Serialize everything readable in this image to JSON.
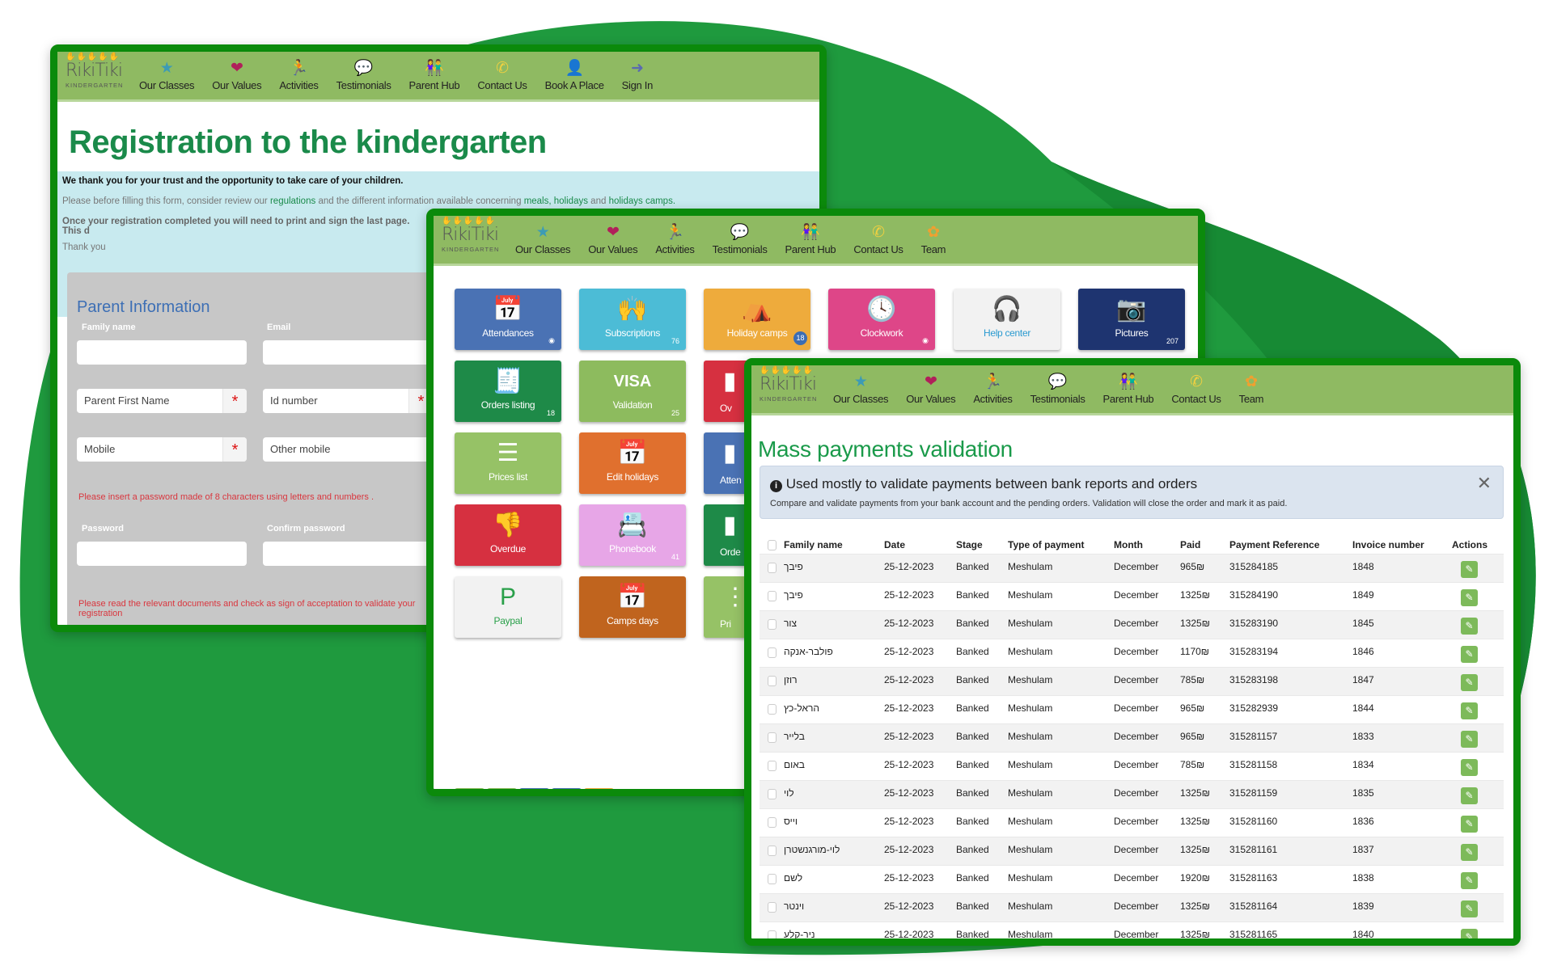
{
  "colors": {
    "frame": "#0b8a0b",
    "nav": "#8fba62",
    "title": "#1a8a4a",
    "blob": "#1e9a3e"
  },
  "logo": {
    "name": "RikiTiki",
    "sub": "KINDERGARTEN",
    "hands": "✋✋✋✋✋"
  },
  "nav1": [
    {
      "label": "Our Classes",
      "icon": "star-icon",
      "glyph": "★",
      "color": "#3d9bb5"
    },
    {
      "label": "Our Values",
      "icon": "heart-hand-icon",
      "glyph": "❤",
      "color": "#b0205a"
    },
    {
      "label": "Activities",
      "icon": "child-icon",
      "glyph": "🏃",
      "color": "#f0a030"
    },
    {
      "label": "Testimonials",
      "icon": "speech-bubble-icon",
      "glyph": "💬",
      "color": "#e8a8e8"
    },
    {
      "label": "Parent Hub",
      "icon": "parents-icon",
      "glyph": "👫",
      "color": "#1a8a3a"
    },
    {
      "label": "Contact Us",
      "icon": "phone-icon",
      "glyph": "✆",
      "color": "#f0d040"
    },
    {
      "label": "Book A Place",
      "icon": "add-user-icon",
      "glyph": "👤",
      "color": "#1e3a7a"
    },
    {
      "label": "Sign In",
      "icon": "sign-in-icon",
      "glyph": "➜",
      "color": "#5a6ab0"
    }
  ],
  "nav2": [
    {
      "label": "Our Classes",
      "icon": "star-icon",
      "glyph": "★",
      "color": "#3d9bb5"
    },
    {
      "label": "Our Values",
      "icon": "heart-hand-icon",
      "glyph": "❤",
      "color": "#b0205a"
    },
    {
      "label": "Activities",
      "icon": "child-icon",
      "glyph": "🏃",
      "color": "#f0a030"
    },
    {
      "label": "Testimonials",
      "icon": "speech-bubble-icon",
      "glyph": "💬",
      "color": "#e8a8e8"
    },
    {
      "label": "Parent Hub",
      "icon": "parents-icon",
      "glyph": "👫",
      "color": "#1a8a3a"
    },
    {
      "label": "Contact Us",
      "icon": "phone-icon",
      "glyph": "✆",
      "color": "#f0d040"
    },
    {
      "label": "Team",
      "icon": "team-icon",
      "glyph": "✿",
      "color": "#f0a030"
    }
  ],
  "registration": {
    "title": "Registration to the kindergarten",
    "thanks": "We thank you for your trust and the opportunity to take care of your children.",
    "before": "Please before filling this form, consider review our",
    "link_regulations": "regulations",
    "middle": "and the different information available concerning",
    "link_meals": "meals,",
    "link_holidays": "holidays",
    "and": "and",
    "link_camps": "holidays camps.",
    "once": "Once your registration completed you will need to print and sign the last page. This d",
    "thank_you": "Thank you",
    "section": "Parent Information",
    "family_label": "Family name",
    "email_label": "Email",
    "first_name_ph": "Parent First Name",
    "id_ph": "Id number",
    "mobile_ph": "Mobile",
    "other_mobile_ph": "Other mobile",
    "password_hint": "Please insert a password made of 8 characters using letters and numbers .",
    "password_label": "Password",
    "confirm_label": "Confirm password",
    "documents_hint": "Please read the relevant documents and check as sign of acceptation to validate your registration",
    "required": "*"
  },
  "tiles": [
    {
      "label": "Attendances",
      "icon": "calendar-check-icon",
      "glyph": "📅",
      "color": "#4a72b4",
      "badge": "◉"
    },
    {
      "label": "Subscriptions",
      "icon": "child-icon",
      "glyph": "🙌",
      "color": "#4cbcd6",
      "badge": "76"
    },
    {
      "label": "Holiday camps",
      "icon": "tent-icon",
      "glyph": "⛺",
      "color": "#eeab3c",
      "badge": "18",
      "circle": true
    },
    {
      "label": "Clockwork",
      "icon": "clock-icon",
      "glyph": "🕓",
      "color": "#de4688",
      "badge": "◉"
    },
    {
      "label": "Help center",
      "icon": "headset-icon",
      "glyph": "🎧",
      "color": "#f2f2f2",
      "text": "#2a9ad0",
      "badge": ""
    },
    {
      "label": "Pictures",
      "icon": "camera-icon",
      "glyph": "📷",
      "color": "#1e3470",
      "badge": "207"
    },
    {
      "label": "Orders listing",
      "icon": "invoice-icon",
      "glyph": "🧾",
      "color": "#1e8a48",
      "badge": "18"
    },
    {
      "label": "Validation",
      "icon": "visa-icon",
      "glyph": "VISA",
      "color": "#8dbb5e",
      "badge": "25"
    },
    {
      "label": "Ov",
      "icon": "document-icon",
      "glyph": "▮",
      "color": "#d63040",
      "badge": ""
    },
    {
      "label": "Prices list",
      "icon": "list-icon",
      "glyph": "☰",
      "color": "#96c266",
      "badge": ""
    },
    {
      "label": "Edit holidays",
      "icon": "calendar-icon",
      "glyph": "📅",
      "color": "#e0702e",
      "badge": ""
    },
    {
      "label": "Atten",
      "icon": "calendar-icon",
      "glyph": "▮",
      "color": "#4a72b4",
      "badge": ""
    },
    {
      "label": "Overdue",
      "icon": "thumbs-down-icon",
      "glyph": "👎",
      "color": "#d63040",
      "badge": ""
    },
    {
      "label": "Phonebook",
      "icon": "phonebook-icon",
      "glyph": "📇",
      "color": "#e7a6e7",
      "badge": "41"
    },
    {
      "label": "Orde",
      "icon": "invoice-icon",
      "glyph": "▮",
      "color": "#1e8a48",
      "badge": ""
    },
    {
      "label": "Paypal",
      "icon": "paypal-icon",
      "glyph": "P",
      "color": "#f2f2f2",
      "text": "#2aa04a",
      "badge": ""
    },
    {
      "label": "Camps days",
      "icon": "calendar-day-icon",
      "glyph": "📅",
      "color": "#c0641e",
      "badge": ""
    },
    {
      "label": "Pri",
      "icon": "list-icon",
      "glyph": "⋮",
      "color": "#96c266",
      "badge": ""
    }
  ],
  "strips": [
    "#8dbb5e",
    "#8dbb5e",
    "#4a72b4",
    "#4a72b4",
    "#eeab3c"
  ],
  "payments": {
    "title": "Mass payments validation",
    "alert_title": "Used mostly to validate payments between bank reports and orders",
    "alert_text": "Compare and validate payments from your bank account and the pending orders. Validation will close the order and mark it as paid.",
    "close": "✕",
    "columns": [
      "Family name",
      "Date",
      "Stage",
      "Type of payment",
      "Month",
      "Paid",
      "Payment Reference",
      "Invoice number",
      "Actions"
    ],
    "rows": [
      [
        "פיבך",
        "25-12-2023",
        "Banked",
        "Meshulam",
        "December",
        "965₪",
        "315284185",
        "1848"
      ],
      [
        "פיבך",
        "25-12-2023",
        "Banked",
        "Meshulam",
        "December",
        "1325₪",
        "315284190",
        "1849"
      ],
      [
        "צור",
        "25-12-2023",
        "Banked",
        "Meshulam",
        "December",
        "1325₪",
        "315283190",
        "1845"
      ],
      [
        "פולבר-אנקה",
        "25-12-2023",
        "Banked",
        "Meshulam",
        "December",
        "1170₪",
        "315283194",
        "1846"
      ],
      [
        "רוזן",
        "25-12-2023",
        "Banked",
        "Meshulam",
        "December",
        "785₪",
        "315283198",
        "1847"
      ],
      [
        "הראל-כץ",
        "25-12-2023",
        "Banked",
        "Meshulam",
        "December",
        "965₪",
        "315282939",
        "1844"
      ],
      [
        "בלייר",
        "25-12-2023",
        "Banked",
        "Meshulam",
        "December",
        "965₪",
        "315281157",
        "1833"
      ],
      [
        "באום",
        "25-12-2023",
        "Banked",
        "Meshulam",
        "December",
        "785₪",
        "315281158",
        "1834"
      ],
      [
        "לוי",
        "25-12-2023",
        "Banked",
        "Meshulam",
        "December",
        "1325₪",
        "315281159",
        "1835"
      ],
      [
        "וייס",
        "25-12-2023",
        "Banked",
        "Meshulam",
        "December",
        "1325₪",
        "315281160",
        "1836"
      ],
      [
        "לוי-מורגנשטרן",
        "25-12-2023",
        "Banked",
        "Meshulam",
        "December",
        "1325₪",
        "315281161",
        "1837"
      ],
      [
        "לשם",
        "25-12-2023",
        "Banked",
        "Meshulam",
        "December",
        "1920₪",
        "315281163",
        "1838"
      ],
      [
        "וינטר",
        "25-12-2023",
        "Banked",
        "Meshulam",
        "December",
        "1325₪",
        "315281164",
        "1839"
      ],
      [
        "ניר-קלע",
        "25-12-2023",
        "Banked",
        "Meshulam",
        "December",
        "1325₪",
        "315281165",
        "1840"
      ]
    ]
  }
}
